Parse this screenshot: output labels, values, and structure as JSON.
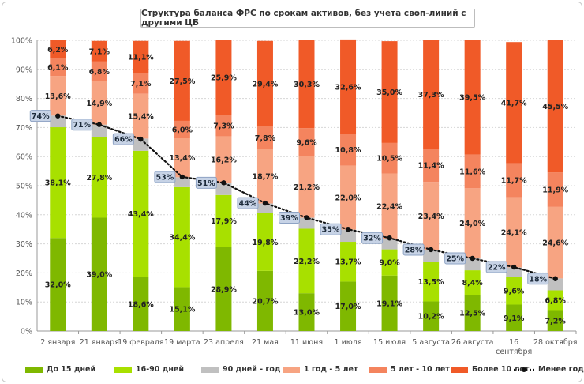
{
  "chart_data": {
    "type": "bar",
    "stacked": true,
    "title": "Структура баланса ФРС по срокам активов, без учета своп-линий с другими ЦБ",
    "y_ticks": [
      "0%",
      "10%",
      "20%",
      "30%",
      "40%",
      "50%",
      "60%",
      "70%",
      "80%",
      "90%",
      "100%"
    ],
    "ylim": [
      0,
      100
    ],
    "grid": true,
    "legend_position": "bottom",
    "categories": [
      "2 января",
      "21 января",
      "19 февраля",
      "19 марта",
      "23 апреля",
      "21 мая",
      "11 июня",
      "1 июля",
      "15 июля",
      "5 августа",
      "26 августа",
      "16 сентября",
      "28 октября"
    ],
    "series": [
      {
        "name": "До 15 дней",
        "color": "#7fb800",
        "values": [
          32.0,
          39.0,
          18.6,
          15.1,
          28.9,
          20.7,
          13.0,
          17.0,
          19.1,
          10.2,
          12.5,
          9.1,
          7.2
        ],
        "labels": [
          "32,0%",
          "39,0%",
          "18,6%",
          "15,1%",
          "28,9%",
          "20,7%",
          "13,0%",
          "17,0%",
          "19,1%",
          "10,2%",
          "12,5%",
          "9,1%",
          "7,2%"
        ]
      },
      {
        "name": "16-90 дней",
        "color": "#a8e000",
        "values": [
          38.1,
          27.8,
          43.4,
          34.4,
          17.9,
          19.8,
          22.2,
          13.7,
          9.0,
          13.5,
          8.4,
          9.6,
          6.8
        ],
        "labels": [
          "38,1%",
          "27,8%",
          "43,4%",
          "34,4%",
          "17,9%",
          "19,8%",
          "22,2%",
          "13,7%",
          "9,0%",
          "13,5%",
          "8,4%",
          "9,6%",
          "6,8%"
        ]
      },
      {
        "name": "90 дней - год",
        "color": "#c0c0c0",
        "values": [
          4.0,
          4.2,
          4.2,
          3.4,
          4.0,
          3.4,
          3.8,
          4.2,
          3.7,
          4.2,
          4.2,
          3.2,
          4.1
        ],
        "labels": [
          "",
          "",
          "",
          "",
          "",
          "",
          "",
          "",
          "",
          "",
          "",
          "",
          ""
        ]
      },
      {
        "name": "1 год - 5 лет",
        "color": "#f7a482",
        "values": [
          13.6,
          14.9,
          15.4,
          13.4,
          16.2,
          18.7,
          21.2,
          22.0,
          22.4,
          23.4,
          24.0,
          24.1,
          24.6
        ],
        "labels": [
          "13,6%",
          "14,9%",
          "15,4%",
          "13,4%",
          "16,2%",
          "18,7%",
          "21,2%",
          "22,0%",
          "22,4%",
          "23,4%",
          "24,0%",
          "24,1%",
          "24,6%"
        ]
      },
      {
        "name": "5 лет - 10 лет",
        "color": "#f4845e",
        "values": [
          6.1,
          6.8,
          7.1,
          6.0,
          7.3,
          7.8,
          9.6,
          10.8,
          10.5,
          11.4,
          11.6,
          11.7,
          11.9
        ],
        "labels": [
          "6,1%",
          "6,8%",
          "7,1%",
          "6,0%",
          "7,3%",
          "7,8%",
          "9,6%",
          "10,8%",
          "10,5%",
          "11,4%",
          "11,6%",
          "11,7%",
          "11,9%"
        ]
      },
      {
        "name": "Более 10 лет",
        "color": "#f05a28",
        "values": [
          6.2,
          7.1,
          11.1,
          27.5,
          25.9,
          29.4,
          30.3,
          32.6,
          35.0,
          37.3,
          39.5,
          41.7,
          45.5
        ],
        "labels": [
          "6,2%",
          "7,1%",
          "11,1%",
          "27,5%",
          "25,9%",
          "29,4%",
          "30,3%",
          "32,6%",
          "35,0%",
          "37,3%",
          "39,5%",
          "41,7%",
          "45,5%"
        ]
      }
    ],
    "line": {
      "name": "Менее года",
      "values": [
        74,
        71,
        66,
        53,
        51,
        44,
        39,
        35,
        32,
        28,
        25,
        22,
        18
      ],
      "labels": [
        "74%",
        "71%",
        "66%",
        "53%",
        "51%",
        "44%",
        "39%",
        "35%",
        "32%",
        "28%",
        "25%",
        "22%",
        "18%"
      ]
    }
  }
}
